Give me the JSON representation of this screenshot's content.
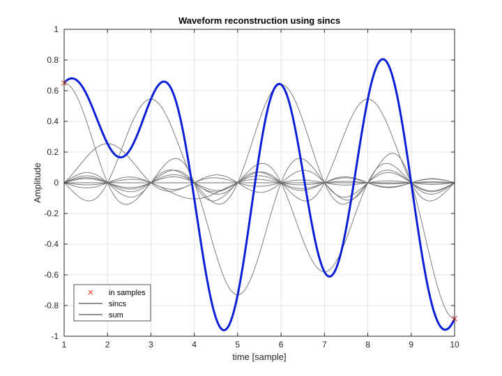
{
  "chart_data": {
    "type": "line",
    "title": "Waveform reconstruction using sincs",
    "xlabel": "time [sample]",
    "ylabel": "Amplitude",
    "xlim": [
      1,
      10
    ],
    "ylim": [
      -1,
      1
    ],
    "xticks": [
      "1",
      "2",
      "3",
      "4",
      "5",
      "6",
      "7",
      "8",
      "9",
      "10"
    ],
    "yticks": [
      "-1",
      "-0.8",
      "-0.6",
      "-0.4",
      "-0.2",
      "0",
      "0.2",
      "0.4",
      "0.6",
      "0.8",
      "1"
    ],
    "grid": true,
    "legend_location": "bottom-left",
    "sample_times": [
      1,
      2,
      3,
      4,
      5,
      6,
      7,
      8,
      9,
      10
    ],
    "samples": [
      0.65,
      0.255,
      0.545,
      -0.105,
      -0.73,
      0.64,
      -0.58,
      0.545,
      0.0,
      -0.885
    ],
    "series": [
      {
        "name": "in samples",
        "style": "markers",
        "marker": "x",
        "color": "#e0403a",
        "x": [
          1,
          10
        ],
        "y": [
          0.65,
          -0.885
        ]
      },
      {
        "name": "sincs",
        "style": "line",
        "color": "#6e6e6e"
      },
      {
        "name": "sum",
        "style": "line",
        "color": "#0a1fd6",
        "x": [
          1,
          10
        ],
        "y": [
          0.65,
          -0.885
        ]
      }
    ],
    "colors": {
      "sincs": "#6e6e6e",
      "sum": "#0a1fd6",
      "samples": "#e0403a",
      "grid": "#e3e3e3",
      "axes": "#262626"
    }
  }
}
